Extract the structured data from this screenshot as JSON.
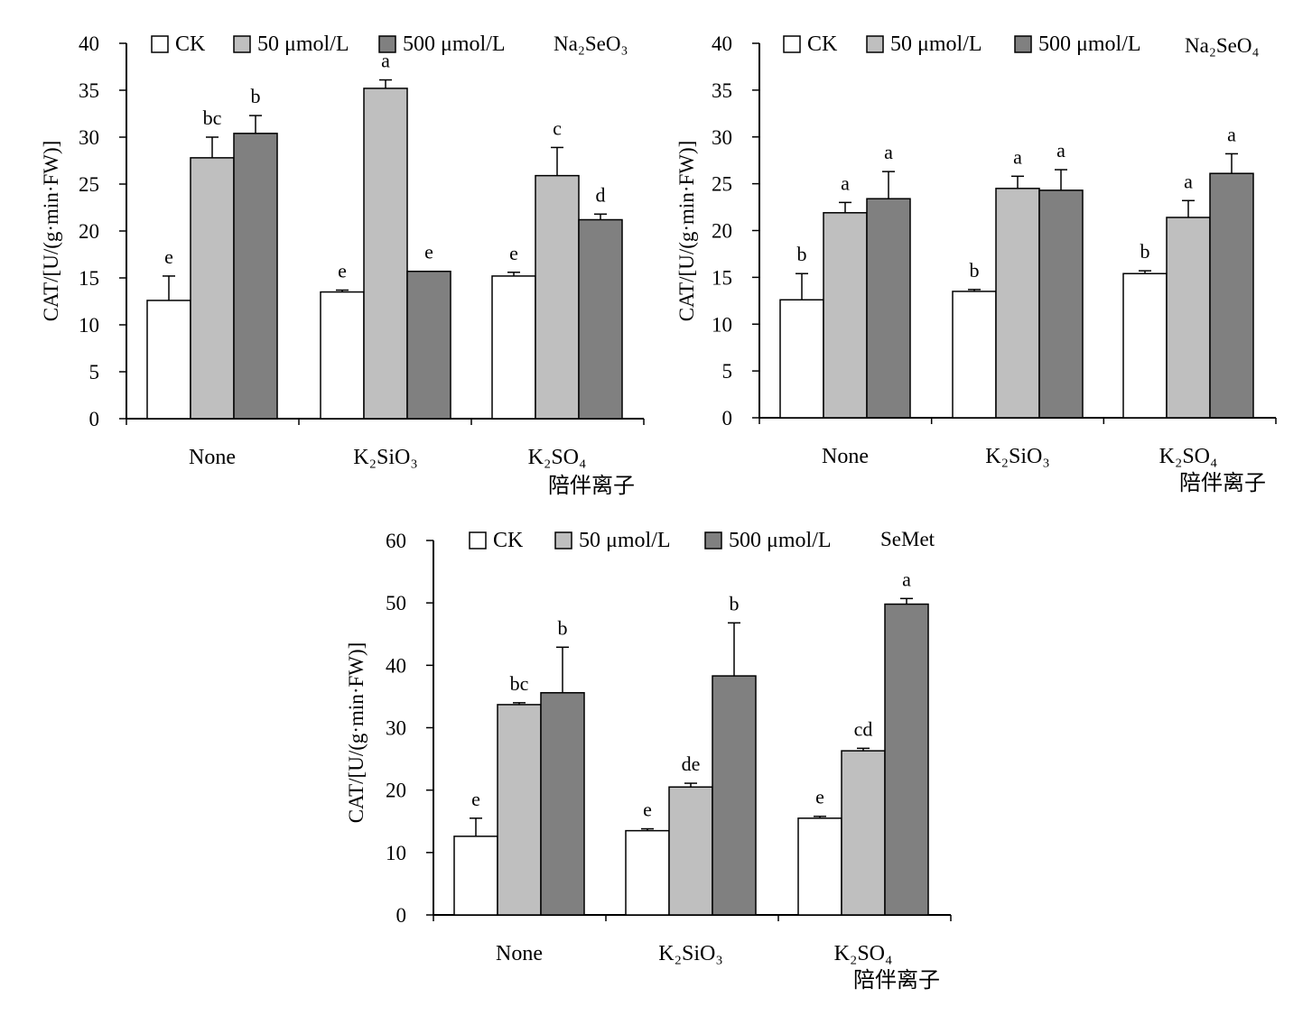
{
  "colors": {
    "CK": "#ffffff",
    "50": "#bfbfbf",
    "500": "#808080",
    "stroke": "#000000"
  },
  "chart_data": [
    {
      "type": "bar",
      "title": "Na₂SeO₃",
      "ylabel": "CAT/[U/(g·min·FW)]",
      "xlabel": "陪伴离子",
      "ylim": [
        0,
        40
      ],
      "yticks": [
        0,
        5,
        10,
        15,
        20,
        25,
        30,
        35,
        40
      ],
      "categories": [
        "None",
        "K₂SiO₃",
        "K₂SO₄"
      ],
      "series": [
        {
          "name": "CK",
          "values": [
            12.6,
            13.5,
            15.2
          ],
          "errors": [
            2.6,
            0.2,
            0.4
          ],
          "letters": [
            "e",
            "e",
            "e"
          ]
        },
        {
          "name": "50 μmol/L",
          "values": [
            27.8,
            35.2,
            25.9
          ],
          "errors": [
            2.2,
            0.9,
            3.0
          ],
          "letters": [
            "bc",
            "a",
            "c"
          ]
        },
        {
          "name": "500 μmol/L",
          "values": [
            30.4,
            15.7,
            21.2
          ],
          "errors": [
            1.9,
            0.0,
            0.6
          ],
          "letters": [
            "b",
            "e",
            "d"
          ]
        }
      ]
    },
    {
      "type": "bar",
      "title": "Na₂SeO₄",
      "ylabel": "CAT/[U/(g·min·FW)]",
      "xlabel": "陪伴离子",
      "ylim": [
        0,
        40
      ],
      "yticks": [
        0,
        5,
        10,
        15,
        20,
        25,
        30,
        35,
        40
      ],
      "categories": [
        "None",
        "K₂SiO₃",
        "K₂SO₄"
      ],
      "series": [
        {
          "name": "CK",
          "values": [
            12.6,
            13.5,
            15.4
          ],
          "errors": [
            2.8,
            0.2,
            0.3
          ],
          "letters": [
            "b",
            "b",
            "b"
          ]
        },
        {
          "name": "50 μmol/L",
          "values": [
            21.9,
            24.5,
            21.4
          ],
          "errors": [
            1.1,
            1.3,
            1.8
          ],
          "letters": [
            "a",
            "a",
            "a"
          ]
        },
        {
          "name": "500 μmol/L",
          "values": [
            23.4,
            24.3,
            26.1
          ],
          "errors": [
            2.9,
            2.2,
            2.1
          ],
          "letters": [
            "a",
            "a",
            "a"
          ]
        }
      ]
    },
    {
      "type": "bar",
      "title": "SeMet",
      "ylabel": "CAT/[U/(g·min·FW)]",
      "xlabel": "陪伴离子",
      "ylim": [
        0,
        60
      ],
      "yticks": [
        0,
        10,
        20,
        30,
        40,
        50,
        60
      ],
      "categories": [
        "None",
        "K₂SiO₃",
        "K₂SO₄"
      ],
      "series": [
        {
          "name": "CK",
          "values": [
            12.6,
            13.5,
            15.5
          ],
          "errors": [
            2.9,
            0.3,
            0.3
          ],
          "letters": [
            "e",
            "e",
            "e"
          ]
        },
        {
          "name": "50 μmol/L",
          "values": [
            33.7,
            20.5,
            26.3
          ],
          "errors": [
            0.3,
            0.6,
            0.4
          ],
          "letters": [
            "bc",
            "de",
            "cd"
          ]
        },
        {
          "name": "500 μmol/L",
          "values": [
            35.6,
            38.3,
            49.8
          ],
          "errors": [
            7.3,
            8.5,
            0.9
          ],
          "letters": [
            "b",
            "b",
            "a"
          ]
        }
      ]
    }
  ]
}
